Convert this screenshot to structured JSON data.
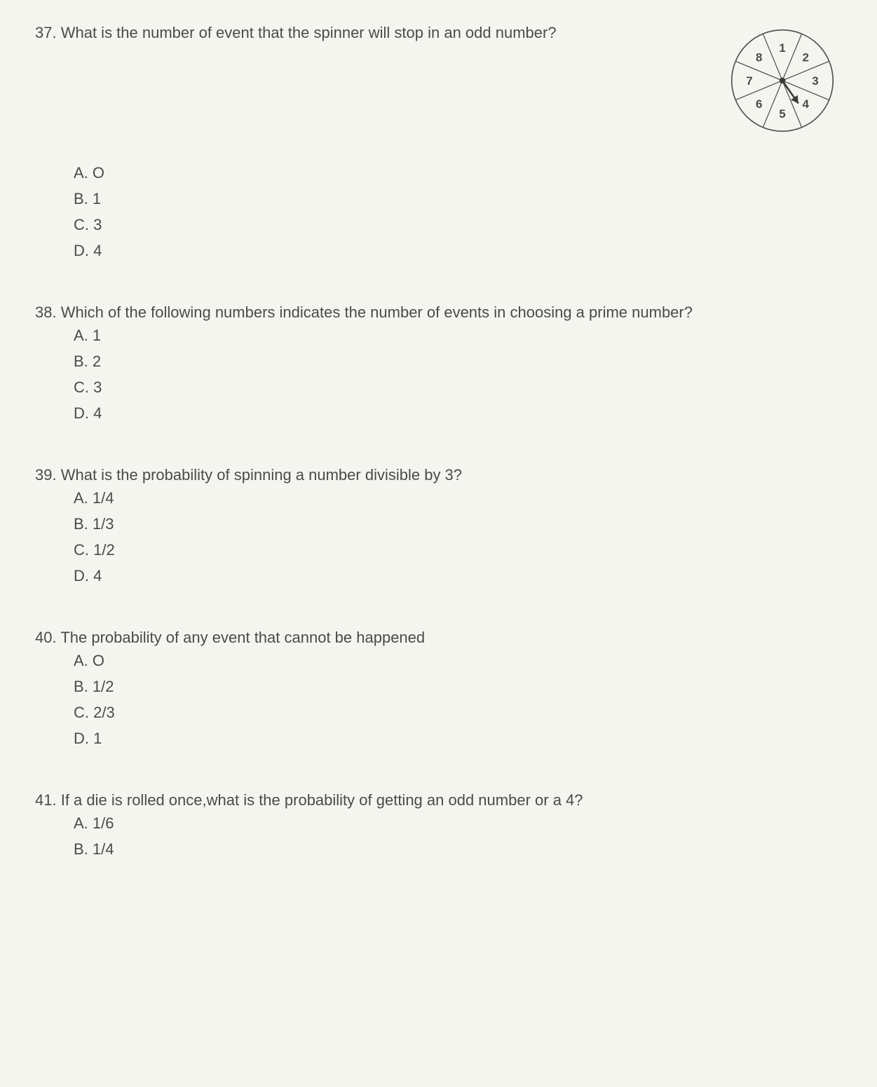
{
  "q37": {
    "number": "37.",
    "text": "What is the number of event that the spinner will stop in an odd number?",
    "choices": {
      "a": "A. O",
      "b": "B. 1",
      "c": "C. 3",
      "d": "D. 4"
    },
    "spinner": {
      "sectors": [
        "1",
        "2",
        "3",
        "4",
        "5",
        "6",
        "7",
        "8"
      ],
      "stroke": "#555555",
      "fill": "#f5f5f0",
      "text_color": "#4a4a4a",
      "pointer_color": "#3a3a3a",
      "font_size": 20
    }
  },
  "q38": {
    "number": "38.",
    "text": "Which of the following numbers indicates the number of events in choosing a prime number?",
    "choices": {
      "a": "A. 1",
      "b": "B. 2",
      "c": "C. 3",
      "d": "D. 4"
    }
  },
  "q39": {
    "number": "39.",
    "text": "What is the probability  of spinning a number divisible by 3?",
    "choices": {
      "a": "A. 1/4",
      "b": "B. 1/3",
      "c": "C. 1/2",
      "d": "D. 4"
    }
  },
  "q40": {
    "number": "40.",
    "text": "The probability of any event that cannot be happened",
    "choices": {
      "a": "A. O",
      "b": "B. 1/2",
      "c": "C. 2/3",
      "d": "D. 1"
    }
  },
  "q41": {
    "number": "41.",
    "text": "If a die is rolled once,what is the probability of getting an odd number or a 4?",
    "choices": {
      "a": "A. 1/6",
      "b": "B. 1/4"
    }
  }
}
